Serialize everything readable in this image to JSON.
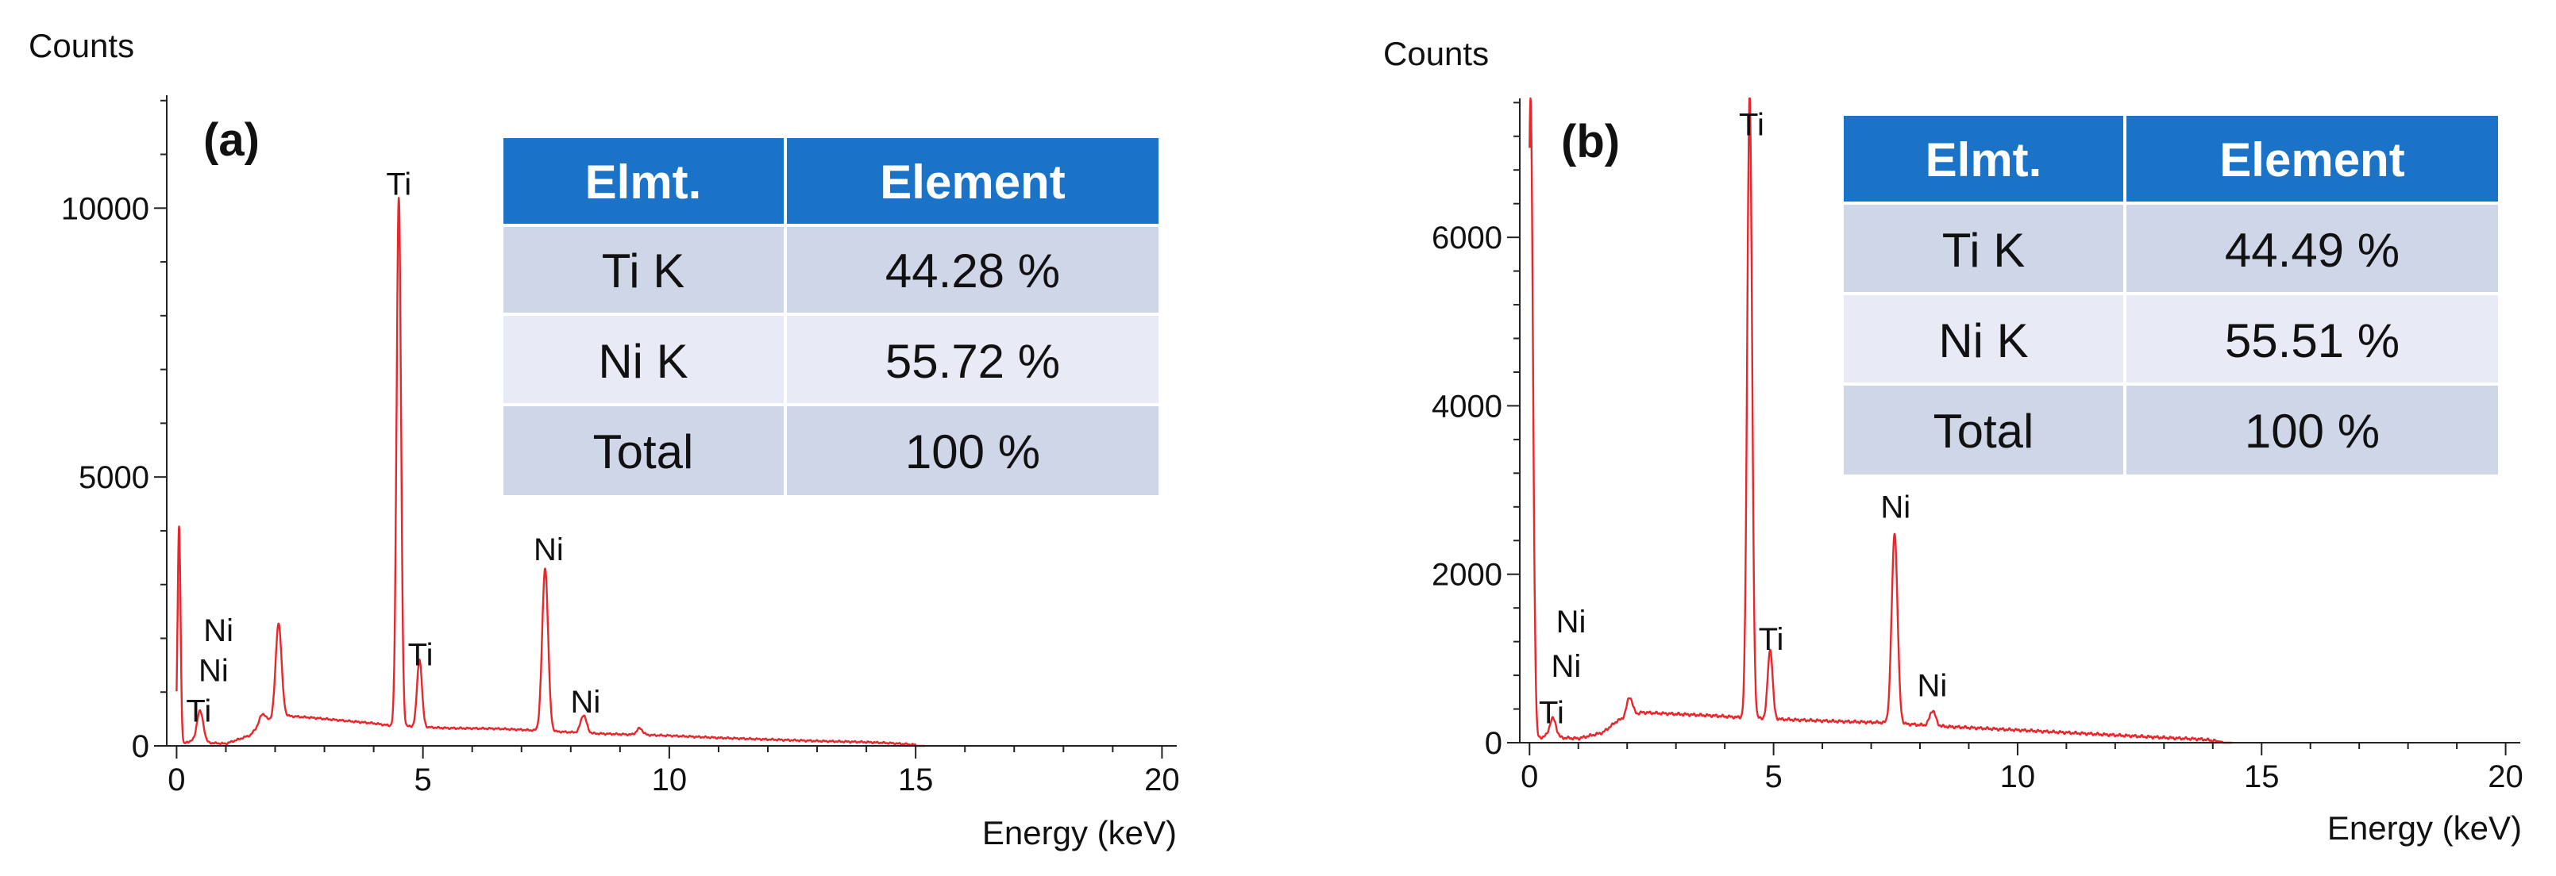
{
  "colors": {
    "spectrum": "#e8262b",
    "table_header": "#1a73c6",
    "row_dark": "#cfd6e8",
    "row_light": "#e8ebf5",
    "grid_white": "#ffffff"
  },
  "chart_data": [
    {
      "type": "line",
      "panel_label": "(a)",
      "ylabel": "Counts",
      "xlabel": "Energy (keV)",
      "xlim": [
        -0.2,
        20.3
      ],
      "ylim": [
        0,
        12100
      ],
      "xticks": [
        0,
        5,
        10,
        15,
        20
      ],
      "yticks": [
        0,
        5000,
        10000
      ],
      "y_tick_labels": [
        "0",
        "5000",
        "10000"
      ],
      "x_tick_labels": [
        "0",
        "5",
        "10",
        "15",
        "20"
      ],
      "series": [
        {
          "name": "EDS spectrum (a)",
          "base": [
            [
              0.05,
              0
            ],
            [
              0.3,
              100
            ],
            [
              0.6,
              60
            ],
            [
              1.0,
              40
            ],
            [
              1.5,
              200
            ],
            [
              1.7,
              420
            ],
            [
              2.2,
              560
            ],
            [
              2.8,
              520
            ],
            [
              3.5,
              460
            ],
            [
              4.0,
              420
            ],
            [
              4.3,
              380
            ],
            [
              5.5,
              330
            ],
            [
              6.5,
              320
            ],
            [
              7.0,
              300
            ],
            [
              8.5,
              230
            ],
            [
              10,
              190
            ],
            [
              11,
              150
            ],
            [
              12,
              120
            ],
            [
              13,
              90
            ],
            [
              14,
              70
            ],
            [
              14.5,
              50
            ],
            [
              15,
              20
            ]
          ],
          "peaks": [
            {
              "keV": 0.05,
              "counts": 4080,
              "width": 0.03
            },
            {
              "keV": 0.45,
              "counts": 420,
              "width": 0.05
            },
            {
              "keV": 0.52,
              "counts": 300,
              "width": 0.05
            },
            {
              "keV": 1.75,
              "counts": 160,
              "width": 0.06
            },
            {
              "keV": 2.07,
              "counts": 1750,
              "width": 0.06
            },
            {
              "keV": 4.51,
              "counts": 9820,
              "width": 0.045
            },
            {
              "keV": 4.93,
              "counts": 1250,
              "width": 0.05
            },
            {
              "keV": 7.48,
              "counts": 3020,
              "width": 0.06
            },
            {
              "keV": 8.26,
              "counts": 330,
              "width": 0.06
            },
            {
              "keV": 9.4,
              "counts": 120,
              "width": 0.06
            }
          ]
        }
      ],
      "annotations": [
        {
          "text": "Ti",
          "keV": 4.51,
          "counts": 10250
        },
        {
          "text": "Ti",
          "keV": 4.95,
          "counts": 1500
        },
        {
          "text": "Ni",
          "keV": 7.55,
          "counts": 3450
        },
        {
          "text": "Ni",
          "keV": 8.3,
          "counts": 620
        },
        {
          "text": "Ni",
          "keV": 0.85,
          "counts": 1950
        },
        {
          "text": "Ni",
          "keV": 0.75,
          "counts": 1200
        },
        {
          "text": "Ti",
          "keV": 0.45,
          "counts": 450
        }
      ],
      "table": {
        "headers": [
          "Elmt.",
          "Element"
        ],
        "rows": [
          [
            "Ti K",
            "44.28 %"
          ],
          [
            "Ni K",
            "55.72 %"
          ],
          [
            "Total",
            "100 %"
          ]
        ]
      }
    },
    {
      "type": "line",
      "panel_label": "(b)",
      "ylabel": "Counts",
      "xlabel": "Energy (keV)",
      "xlim": [
        -0.2,
        20.3
      ],
      "ylim": [
        0,
        7650
      ],
      "xticks": [
        0,
        5,
        10,
        15,
        20
      ],
      "yticks": [
        0,
        2000,
        4000,
        6000
      ],
      "y_tick_labels": [
        "0",
        "2000",
        "4000",
        "6000"
      ],
      "x_tick_labels": [
        "0",
        "5",
        "10",
        "15",
        "20"
      ],
      "series": [
        {
          "name": "EDS spectrum (b)",
          "base": [
            [
              0.05,
              0
            ],
            [
              0.3,
              80
            ],
            [
              0.6,
              60
            ],
            [
              1.0,
              50
            ],
            [
              1.5,
              120
            ],
            [
              1.8,
              260
            ],
            [
              2.3,
              360
            ],
            [
              3.0,
              340
            ],
            [
              3.8,
              320
            ],
            [
              4.3,
              300
            ],
            [
              5.5,
              270
            ],
            [
              6.5,
              250
            ],
            [
              7.2,
              240
            ],
            [
              8.6,
              190
            ],
            [
              10,
              150
            ],
            [
              11,
              120
            ],
            [
              12,
              90
            ],
            [
              13,
              60
            ],
            [
              13.8,
              40
            ],
            [
              14.2,
              10
            ]
          ],
          "peaks": [
            {
              "keV": 0.02,
              "counts": 7650,
              "width": 0.05
            },
            {
              "keV": 0.45,
              "counts": 160,
              "width": 0.05
            },
            {
              "keV": 0.52,
              "counts": 120,
              "width": 0.05
            },
            {
              "keV": 2.05,
              "counts": 230,
              "width": 0.06
            },
            {
              "keV": 4.51,
              "counts": 7400,
              "width": 0.05
            },
            {
              "keV": 4.93,
              "counts": 820,
              "width": 0.05
            },
            {
              "keV": 7.48,
              "counts": 2250,
              "width": 0.06
            },
            {
              "keV": 8.26,
              "counts": 180,
              "width": 0.06
            }
          ]
        }
      ],
      "annotations": [
        {
          "text": "Ti",
          "keV": 4.55,
          "counts": 7210
        },
        {
          "text": "Ti",
          "keV": 4.95,
          "counts": 1100
        },
        {
          "text": "Ni",
          "keV": 7.5,
          "counts": 2670
        },
        {
          "text": "Ni",
          "keV": 8.25,
          "counts": 550
        },
        {
          "text": "Ni",
          "keV": 0.85,
          "counts": 1310
        },
        {
          "text": "Ni",
          "keV": 0.75,
          "counts": 780
        },
        {
          "text": "Ti",
          "keV": 0.45,
          "counts": 230
        }
      ],
      "table": {
        "headers": [
          "Elmt.",
          "Element"
        ],
        "rows": [
          [
            "Ti K",
            "44.49 %"
          ],
          [
            "Ni K",
            "55.51 %"
          ],
          [
            "Total",
            "100 %"
          ]
        ]
      }
    }
  ]
}
